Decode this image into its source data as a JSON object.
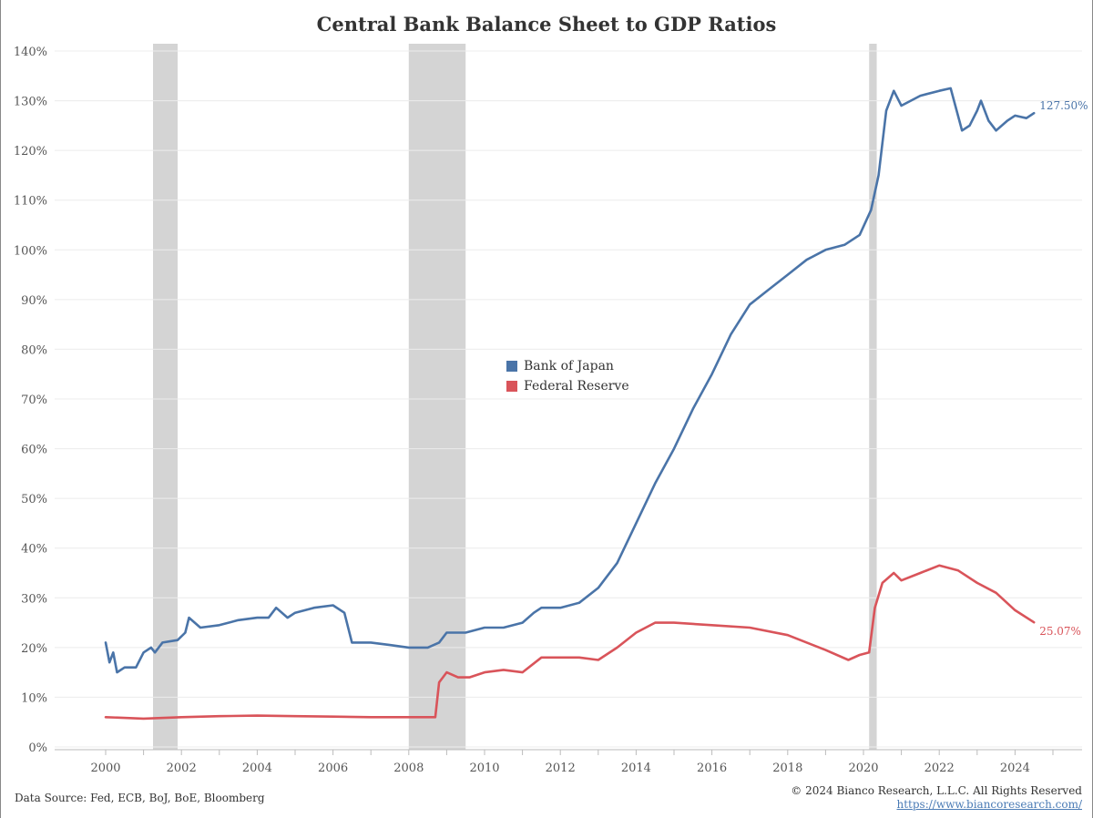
{
  "chart_data": {
    "type": "line",
    "title": "Central Bank Balance Sheet to GDP Ratios",
    "xlabel": "",
    "ylabel": "",
    "xlim": [
      1999.2,
      2026.2
    ],
    "ylim": [
      0,
      140
    ],
    "x_ticks": [
      "2000",
      "2002",
      "2004",
      "2006",
      "2008",
      "2010",
      "2012",
      "2014",
      "2016",
      "2018",
      "2020",
      "2022",
      "2024"
    ],
    "y_ticks": [
      "0%",
      "10%",
      "20%",
      "30%",
      "40%",
      "50%",
      "60%",
      "70%",
      "80%",
      "90%",
      "100%",
      "110%",
      "120%",
      "130%",
      "140%"
    ],
    "grid": "horizontal",
    "legend_position": "center",
    "recession_shading": [
      [
        2001.25,
        2001.9
      ],
      [
        2008.0,
        2009.5
      ],
      [
        2020.15,
        2020.35
      ]
    ],
    "series": [
      {
        "name": "Bank of Japan",
        "color": "#4a74a8",
        "end_label": "127.50%",
        "points": [
          [
            2000.0,
            21
          ],
          [
            2000.1,
            17
          ],
          [
            2000.2,
            19
          ],
          [
            2000.3,
            15
          ],
          [
            2000.5,
            16
          ],
          [
            2000.8,
            16
          ],
          [
            2001.0,
            19
          ],
          [
            2001.2,
            20
          ],
          [
            2001.3,
            19
          ],
          [
            2001.5,
            21
          ],
          [
            2001.9,
            21.5
          ],
          [
            2002.1,
            23
          ],
          [
            2002.2,
            26
          ],
          [
            2002.5,
            24
          ],
          [
            2003.0,
            24.5
          ],
          [
            2003.5,
            25.5
          ],
          [
            2004.0,
            26
          ],
          [
            2004.3,
            26
          ],
          [
            2004.5,
            28
          ],
          [
            2004.8,
            26
          ],
          [
            2005.0,
            27
          ],
          [
            2005.5,
            28
          ],
          [
            2006.0,
            28.5
          ],
          [
            2006.3,
            27
          ],
          [
            2006.5,
            21
          ],
          [
            2007.0,
            21
          ],
          [
            2007.5,
            20.5
          ],
          [
            2008.0,
            20
          ],
          [
            2008.5,
            20
          ],
          [
            2008.8,
            21
          ],
          [
            2009.0,
            23
          ],
          [
            2009.5,
            23
          ],
          [
            2010.0,
            24
          ],
          [
            2010.5,
            24
          ],
          [
            2011.0,
            25
          ],
          [
            2011.3,
            27
          ],
          [
            2011.5,
            28
          ],
          [
            2012.0,
            28
          ],
          [
            2012.5,
            29
          ],
          [
            2013.0,
            32
          ],
          [
            2013.5,
            37
          ],
          [
            2014.0,
            45
          ],
          [
            2014.5,
            53
          ],
          [
            2015.0,
            60
          ],
          [
            2015.5,
            68
          ],
          [
            2016.0,
            75
          ],
          [
            2016.5,
            83
          ],
          [
            2017.0,
            89
          ],
          [
            2017.5,
            92
          ],
          [
            2018.0,
            95
          ],
          [
            2018.5,
            98
          ],
          [
            2019.0,
            100
          ],
          [
            2019.5,
            101
          ],
          [
            2019.9,
            103
          ],
          [
            2020.2,
            108
          ],
          [
            2020.4,
            115
          ],
          [
            2020.6,
            128
          ],
          [
            2020.8,
            132
          ],
          [
            2021.0,
            129
          ],
          [
            2021.5,
            131
          ],
          [
            2022.0,
            132
          ],
          [
            2022.3,
            132.5
          ],
          [
            2022.6,
            124
          ],
          [
            2022.8,
            125
          ],
          [
            2023.0,
            128
          ],
          [
            2023.1,
            130
          ],
          [
            2023.3,
            126
          ],
          [
            2023.5,
            124
          ],
          [
            2023.8,
            126
          ],
          [
            2024.0,
            127
          ],
          [
            2024.3,
            126.5
          ],
          [
            2024.5,
            127.5
          ]
        ]
      },
      {
        "name": "Federal Reserve",
        "color": "#d9545a",
        "end_label": "25.07%",
        "points": [
          [
            2000.0,
            6
          ],
          [
            2001.0,
            5.7
          ],
          [
            2002.0,
            6
          ],
          [
            2003.0,
            6.2
          ],
          [
            2004.0,
            6.3
          ],
          [
            2005.0,
            6.2
          ],
          [
            2006.0,
            6.1
          ],
          [
            2007.0,
            6
          ],
          [
            2008.0,
            6
          ],
          [
            2008.7,
            6
          ],
          [
            2008.8,
            13
          ],
          [
            2009.0,
            15
          ],
          [
            2009.3,
            14
          ],
          [
            2009.6,
            14
          ],
          [
            2010.0,
            15
          ],
          [
            2010.5,
            15.5
          ],
          [
            2011.0,
            15
          ],
          [
            2011.5,
            18
          ],
          [
            2012.0,
            18
          ],
          [
            2012.5,
            18
          ],
          [
            2013.0,
            17.5
          ],
          [
            2013.5,
            20
          ],
          [
            2014.0,
            23
          ],
          [
            2014.5,
            25
          ],
          [
            2015.0,
            25
          ],
          [
            2016.0,
            24.5
          ],
          [
            2017.0,
            24
          ],
          [
            2018.0,
            22.5
          ],
          [
            2019.0,
            19.5
          ],
          [
            2019.6,
            17.5
          ],
          [
            2019.9,
            18.5
          ],
          [
            2020.15,
            19
          ],
          [
            2020.3,
            28
          ],
          [
            2020.5,
            33
          ],
          [
            2020.8,
            35
          ],
          [
            2021.0,
            33.5
          ],
          [
            2021.5,
            35
          ],
          [
            2022.0,
            36.5
          ],
          [
            2022.5,
            35.5
          ],
          [
            2023.0,
            33
          ],
          [
            2023.5,
            31
          ],
          [
            2024.0,
            27.5
          ],
          [
            2024.5,
            25.07
          ]
        ]
      }
    ]
  },
  "footer": {
    "source": "Data Source: Fed, ECB, BoJ, BoE, Bloomberg",
    "copyright": "© 2024 Bianco Research, L.L.C. All Rights Reserved",
    "link": "https://www.biancoresearch.com/"
  }
}
